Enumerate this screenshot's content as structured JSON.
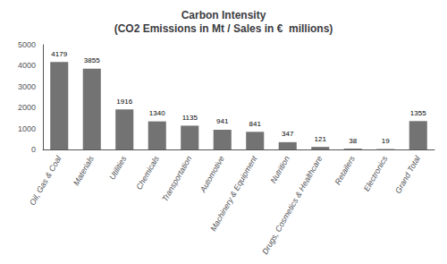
{
  "chart_data": {
    "type": "bar",
    "title": "Carbon Intensity\n(CO2 Emissions in Mt / Sales in €  millions)",
    "categories": [
      "Oil, Gas & Coal",
      "Materials",
      "Utilities",
      "Chemicals",
      "Transportation",
      "Automotive",
      "Machinery & Equipment",
      "Nutrition",
      "Drugs, Cosmetics & Healthcare",
      "Retailers",
      "Electronics",
      "Grand Total"
    ],
    "values": [
      4179,
      3855,
      1916,
      1340,
      1135,
      941,
      841,
      347,
      121,
      38,
      19,
      1355
    ],
    "color": "#737373",
    "ylim": [
      0,
      5000
    ],
    "yticks": [
      0,
      1000,
      2000,
      3000,
      4000,
      5000
    ],
    "grid": false,
    "data_labels": true
  }
}
